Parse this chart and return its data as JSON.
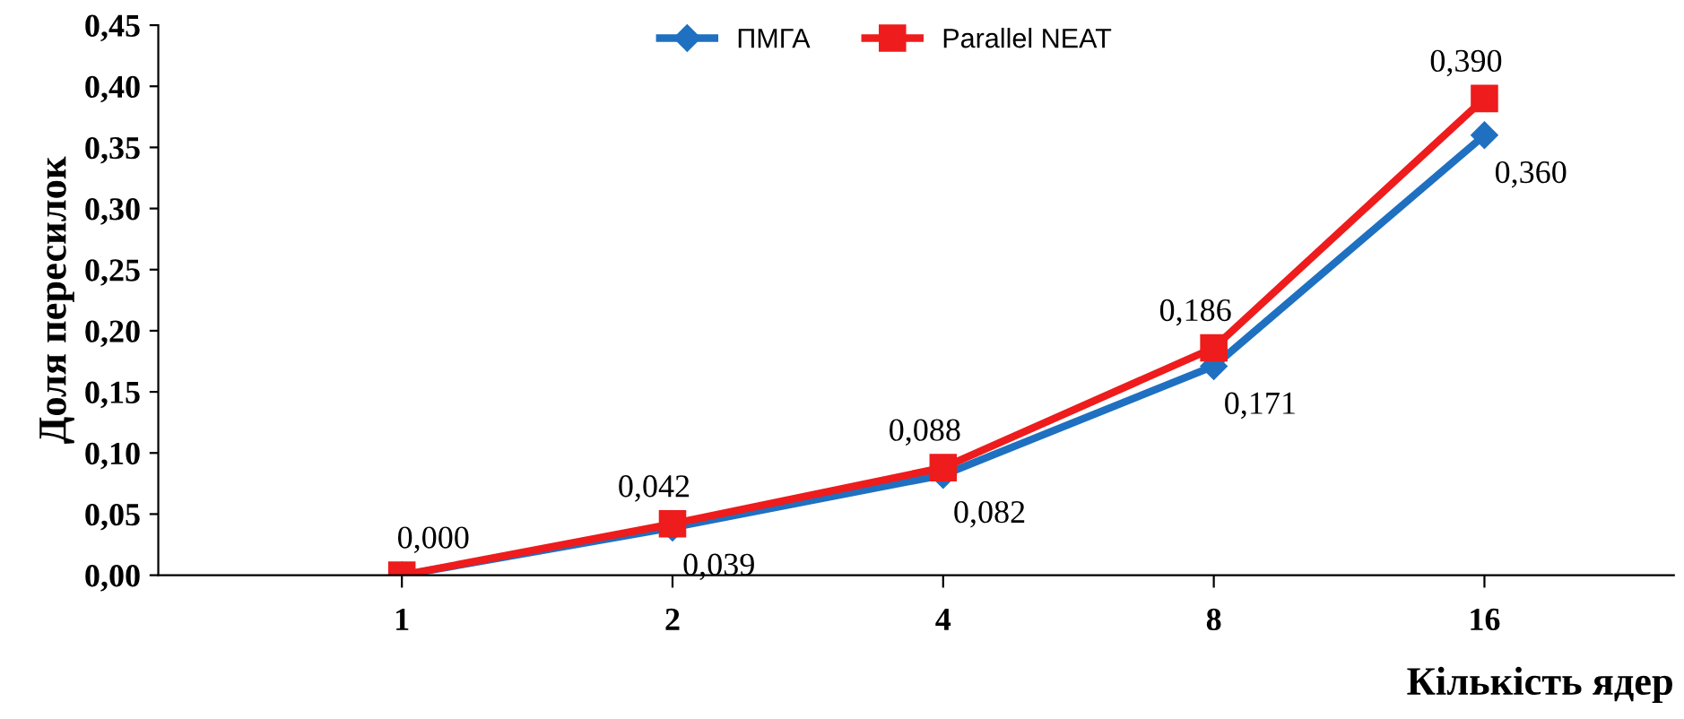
{
  "chart_data": {
    "type": "line",
    "xlabel": "Кількість ядер",
    "ylabel": "Доля пересилок",
    "categories": [
      "1",
      "2",
      "4",
      "8",
      "16"
    ],
    "series": [
      {
        "name": "ПМГА",
        "color": "#1f70c1",
        "marker": "diamond",
        "values": [
          0,
          0.039,
          0.082,
          0.171,
          0.36
        ],
        "value_labels": [
          null,
          "0,039",
          "0,082",
          "0,171",
          "0,360"
        ]
      },
      {
        "name": "Parallel NEAT",
        "color": "#ee1c1c",
        "marker": "square",
        "values": [
          0,
          0.042,
          0.088,
          0.186,
          0.39
        ],
        "value_labels": [
          "0,000",
          "0,042",
          "0,088",
          "0,186",
          "0,390"
        ]
      }
    ],
    "ylim": [
      0,
      0.45
    ],
    "yticks": [
      {
        "value": 0,
        "label": "0,00"
      },
      {
        "value": 0.05,
        "label": "0,05"
      },
      {
        "value": 0.1,
        "label": "0,10"
      },
      {
        "value": 0.15,
        "label": "0,15"
      },
      {
        "value": 0.2,
        "label": "0,20"
      },
      {
        "value": 0.25,
        "label": "0,25"
      },
      {
        "value": 0.3,
        "label": "0,30"
      },
      {
        "value": 0.35,
        "label": "0,35"
      },
      {
        "value": 0.4,
        "label": "0,40"
      },
      {
        "value": 0.45,
        "label": "0,45"
      }
    ],
    "grid": false,
    "legend": "top",
    "line_style": "solid"
  }
}
